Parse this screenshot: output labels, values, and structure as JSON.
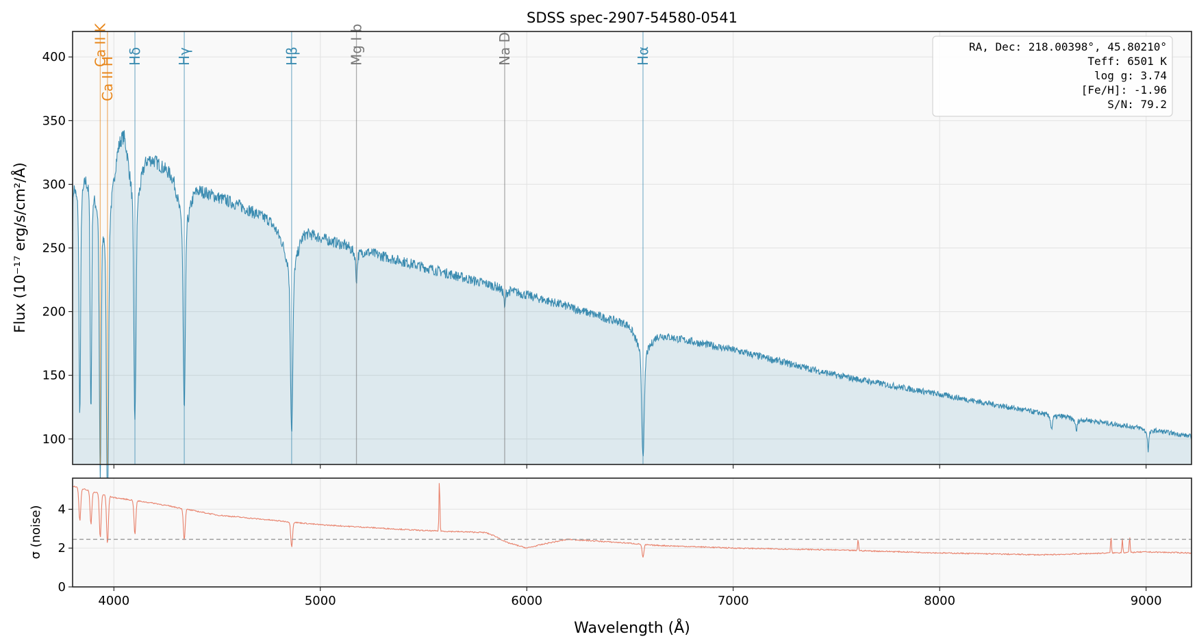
{
  "chart_data": [
    {
      "type": "line",
      "title": "SDSS spec-2907-54580-0541",
      "xlabel": "Wavelength (Å)",
      "ylabel": "Flux (10⁻¹⁷ erg/s/cm²/Å)",
      "xlim": [
        3800,
        9220
      ],
      "ylim": [
        80,
        420
      ],
      "xticks": [
        4000,
        5000,
        6000,
        7000,
        8000,
        9000
      ],
      "yticks": [
        100,
        150,
        200,
        250,
        300,
        350,
        400
      ],
      "grid": true,
      "fill_under": true,
      "color": "#3a8bb0",
      "continuum": {
        "wavelength": [
          3800,
          3850,
          3900,
          3950,
          4000,
          4050,
          4100,
          4200,
          4300,
          4400,
          4500,
          4600,
          4700,
          4750,
          4800,
          4900,
          5000,
          5200,
          5500,
          5800,
          6000,
          6200,
          6400,
          6550,
          6600,
          7000,
          7500,
          8000,
          8500,
          9000,
          9220
        ],
        "flux": [
          315,
          325,
          335,
          335,
          328,
          342,
          325,
          318,
          305,
          296,
          290,
          284,
          276,
          272,
          262,
          264,
          258,
          248,
          235,
          222,
          213,
          204,
          194,
          188,
          183,
          170,
          150,
          135,
          120,
          108,
          102
        ]
      },
      "absorption_lines": [
        {
          "wavelength": 3798,
          "min_flux": 275,
          "width": 4
        },
        {
          "wavelength": 3835,
          "min_flux": 160,
          "width": 5
        },
        {
          "wavelength": 3889,
          "min_flux": 165,
          "width": 5
        },
        {
          "wavelength": 3934,
          "min_flux": 125,
          "width": 6
        },
        {
          "wavelength": 3969,
          "min_flux": 103,
          "width": 7
        },
        {
          "wavelength": 4102,
          "min_flux": 155,
          "width": 7
        },
        {
          "wavelength": 4341,
          "min_flux": 158,
          "width": 7
        },
        {
          "wavelength": 4861,
          "min_flux": 138,
          "width": 8
        },
        {
          "wavelength": 5175,
          "min_flux": 230,
          "width": 5
        },
        {
          "wavelength": 5893,
          "min_flux": 205,
          "width": 4
        },
        {
          "wavelength": 6563,
          "min_flux": 108,
          "width": 9
        },
        {
          "wavelength": 8542,
          "min_flux": 110,
          "width": 5
        },
        {
          "wavelength": 8662,
          "min_flux": 108,
          "width": 5
        },
        {
          "wavelength": 9010,
          "min_flux": 94,
          "width": 4
        }
      ],
      "line_markers": [
        {
          "label": "Ca II K",
          "wavelength": 3934,
          "color": "#e8861a",
          "position": "high"
        },
        {
          "label": "Ca II H",
          "wavelength": 3969,
          "color": "#e8861a",
          "position": "low"
        },
        {
          "label": "Hδ",
          "wavelength": 4102,
          "color": "#3a8bb0",
          "position": "mid"
        },
        {
          "label": "Hγ",
          "wavelength": 4341,
          "color": "#3a8bb0",
          "position": "mid"
        },
        {
          "label": "Hβ",
          "wavelength": 4861,
          "color": "#3a8bb0",
          "position": "mid"
        },
        {
          "label": "Mg I b",
          "wavelength": 5175,
          "color": "#777777",
          "position": "mid"
        },
        {
          "label": "Na D",
          "wavelength": 5893,
          "color": "#777777",
          "position": "mid"
        },
        {
          "label": "Hα",
          "wavelength": 6563,
          "color": "#3a8bb0",
          "position": "mid"
        }
      ],
      "info_box": {
        "position": "top-right",
        "lines": [
          "RA, Dec: 218.00398°, 45.80210°",
          "Teff: 6501 K",
          "log g: 3.74",
          "[Fe/H]: -1.96",
          "S/N: 79.2"
        ]
      }
    },
    {
      "type": "line",
      "ylabel": "σ (noise)",
      "xlabel": "Wavelength (Å)",
      "xlim": [
        3800,
        9220
      ],
      "ylim": [
        0,
        5.6
      ],
      "yticks": [
        0,
        2,
        4
      ],
      "xticks": [
        4000,
        5000,
        6000,
        7000,
        8000,
        9000
      ],
      "color": "#e8806a",
      "reference_line": {
        "value": 2.45,
        "style": "dashed",
        "color": "#999999"
      },
      "continuum": {
        "wavelength": [
          3800,
          3900,
          4000,
          4200,
          4500,
          5000,
          5500,
          5800,
          5850,
          5900,
          6000,
          6100,
          6200,
          6500,
          6600,
          7000,
          7500,
          8000,
          8500,
          9000,
          9220
        ],
        "sigma": [
          5.2,
          4.9,
          4.6,
          4.3,
          3.7,
          3.2,
          2.9,
          2.8,
          2.6,
          2.3,
          2.0,
          2.25,
          2.45,
          2.25,
          2.15,
          2.0,
          1.9,
          1.75,
          1.65,
          1.8,
          1.75
        ]
      },
      "spikes": [
        {
          "wavelength": 5577,
          "value": 5.6
        },
        {
          "wavelength": 7605,
          "value": 2.5
        },
        {
          "wavelength": 8830,
          "value": 2.6
        },
        {
          "wavelength": 8885,
          "value": 2.5
        },
        {
          "wavelength": 8920,
          "value": 2.6
        }
      ],
      "dips": [
        {
          "wavelength": 3835,
          "value": 3.4
        },
        {
          "wavelength": 3889,
          "value": 3.2
        },
        {
          "wavelength": 3934,
          "value": 2.5
        },
        {
          "wavelength": 3969,
          "value": 2.2
        },
        {
          "wavelength": 4102,
          "value": 2.7
        },
        {
          "wavelength": 4341,
          "value": 2.4
        },
        {
          "wavelength": 4861,
          "value": 2.05
        },
        {
          "wavelength": 6563,
          "value": 1.5
        }
      ]
    }
  ]
}
